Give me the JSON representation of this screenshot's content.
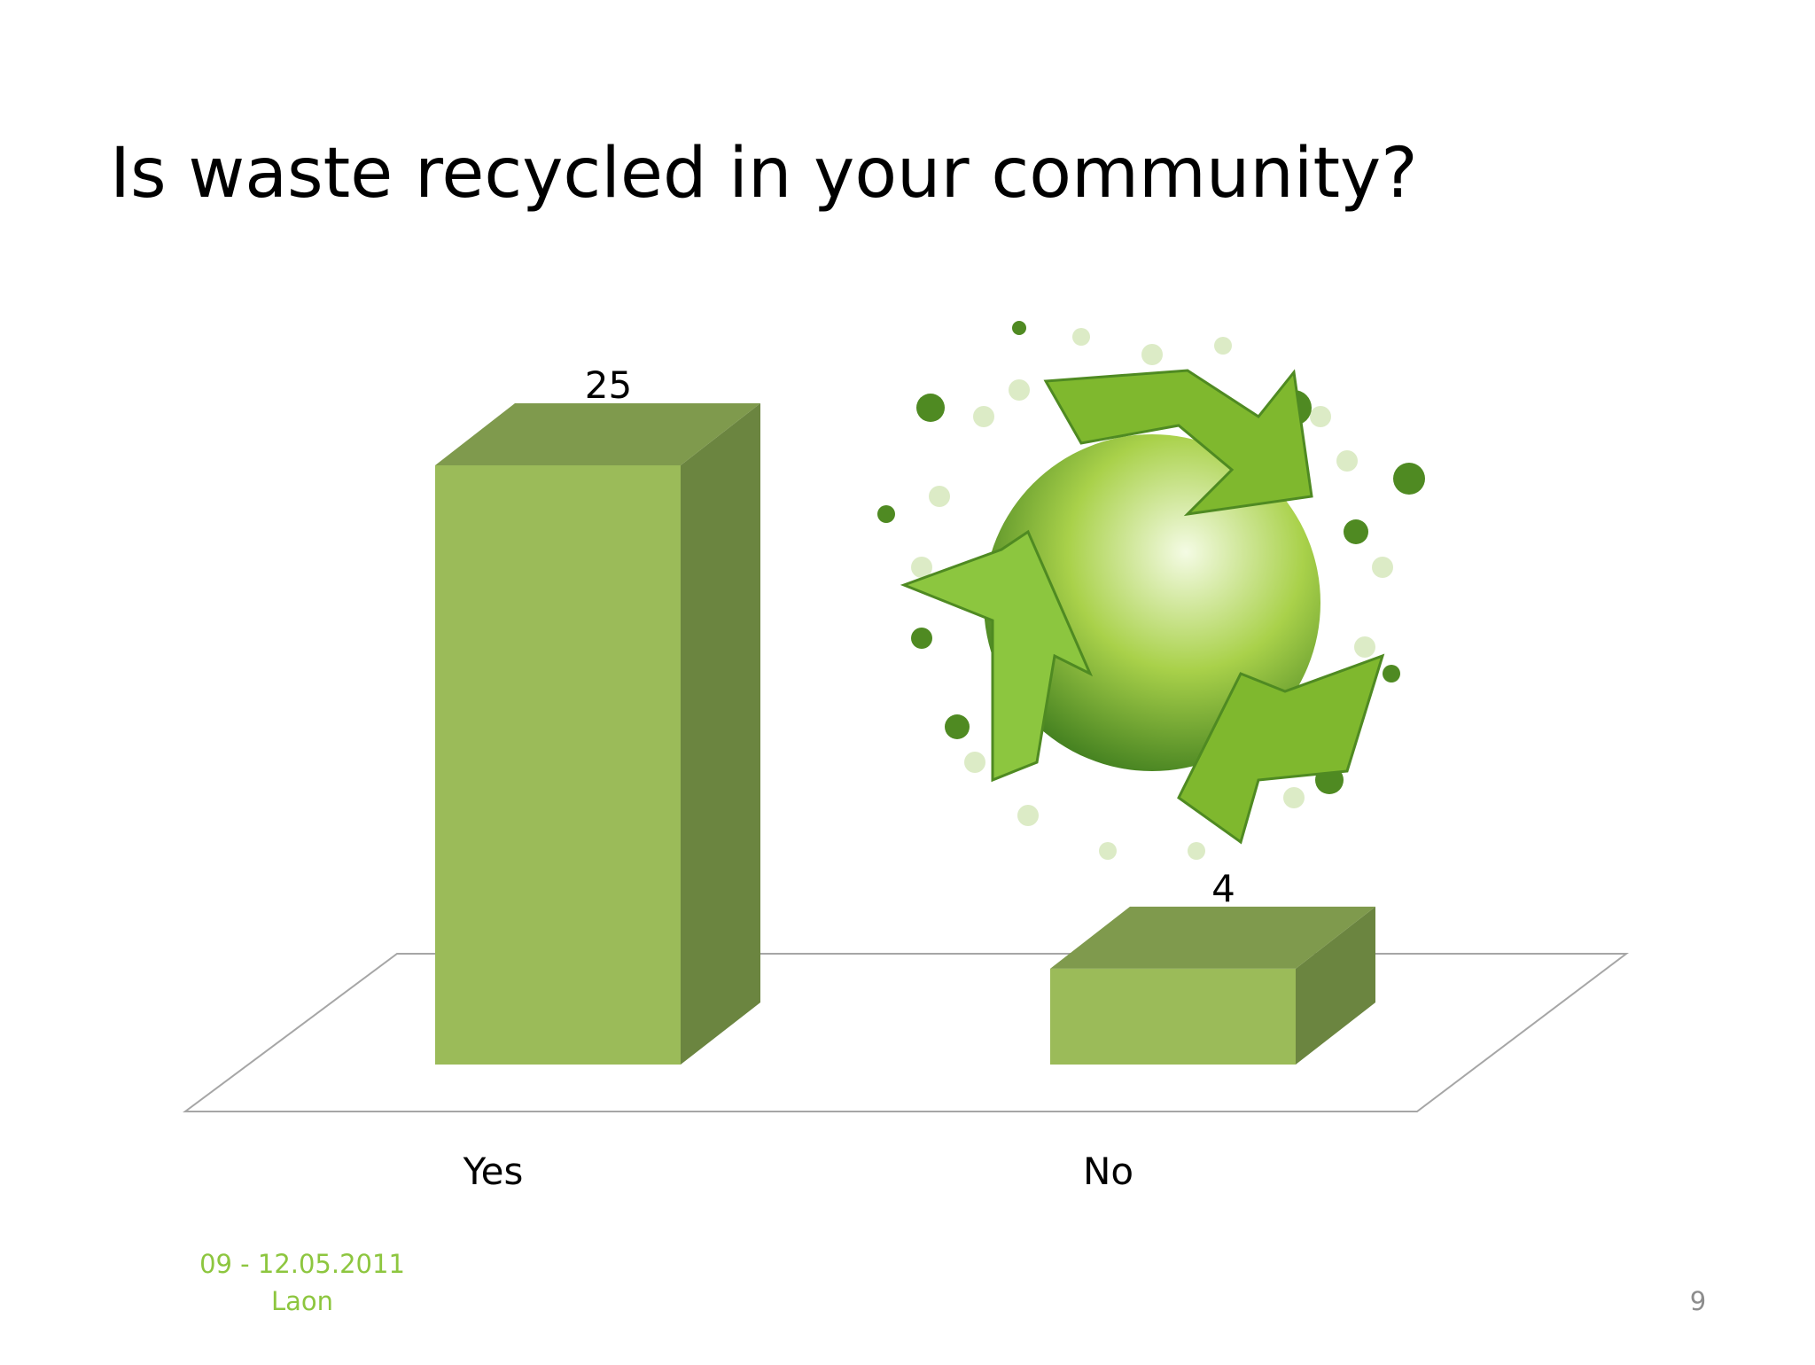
{
  "chart_data": {
    "type": "bar3d",
    "title": "Is waste recycled in your community?",
    "categories": [
      "Yes",
      "No"
    ],
    "values": [
      25,
      4
    ],
    "colors": {
      "front": "#9bbb59",
      "top": "#7f9a4d",
      "side": "#6b8540"
    }
  },
  "footer": {
    "date": "09 - 12.05.2011",
    "place": "Laon",
    "page": "9"
  }
}
